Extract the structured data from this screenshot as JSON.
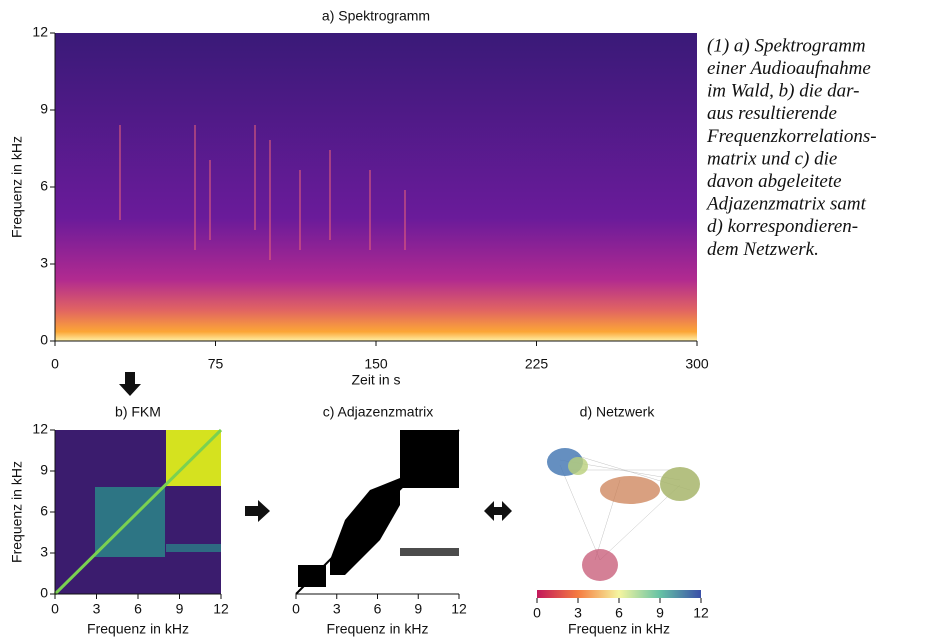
{
  "panels": [
    {
      "title": "a) Spektrogramm",
      "xlabel": "Zeit in s",
      "ylabel": "Frequenz in kHz",
      "xlim": [
        0,
        300
      ],
      "ylim": [
        0,
        12
      ],
      "xticks": [
        0,
        75,
        150,
        225,
        300
      ],
      "yticks": [
        0,
        3,
        6,
        9,
        12
      ]
    },
    {
      "title": "b) FKM",
      "xlabel": "Frequenz in kHz",
      "ylabel": "Frequenz in kHz",
      "xlim": [
        0,
        12
      ],
      "ylim": [
        0,
        12
      ],
      "xticks": [
        0,
        3,
        6,
        9,
        12
      ],
      "yticks": [
        0,
        3,
        6,
        9,
        12
      ]
    },
    {
      "title": "c) Adjazenzmatrix",
      "xlabel": "Frequenz in kHz",
      "xlim": [
        0,
        12
      ],
      "xticks": [
        0,
        3,
        6,
        9,
        12
      ]
    },
    {
      "title": "d) Netzwerk",
      "xlabel": "Frequenz in kHz",
      "xlim": [
        0,
        12
      ],
      "xticks": [
        0,
        3,
        6,
        9,
        12
      ]
    }
  ],
  "caption": [
    "(1) a) Spektrogramm",
    "einer Audioaufnahme",
    "im Wald, b) die dar-",
    "aus resultierende",
    "Frequenzkorrelations-",
    "matrix und c) die",
    "davon abgeleitete",
    "Adjazenzmatrix samt",
    "d) korrespondieren-",
    "dem Netzwerk."
  ]
}
